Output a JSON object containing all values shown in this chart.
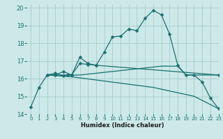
{
  "title": "",
  "xlabel": "Humidex (Indice chaleur)",
  "xlim": [
    -0.5,
    23
  ],
  "ylim": [
    14,
    20.2
  ],
  "yticks": [
    14,
    15,
    16,
    17,
    18,
    19,
    20
  ],
  "xticks": [
    0,
    1,
    2,
    3,
    4,
    5,
    6,
    7,
    8,
    9,
    10,
    11,
    12,
    13,
    14,
    15,
    16,
    17,
    18,
    19,
    20,
    21,
    22,
    23
  ],
  "background_color": "#cce8e8",
  "grid_color": "#aacccc",
  "line_color": "#1a7070",
  "series": [
    {
      "x": [
        0,
        1,
        2,
        3,
        4,
        5,
        6,
        7,
        8,
        9,
        10,
        11,
        12,
        13,
        14,
        15,
        16,
        17,
        18,
        19,
        20,
        21,
        22,
        23
      ],
      "y": [
        14.4,
        15.5,
        16.2,
        16.2,
        16.4,
        16.2,
        17.2,
        16.85,
        16.75,
        17.5,
        18.35,
        18.4,
        18.8,
        18.7,
        19.4,
        19.85,
        19.6,
        18.5,
        16.75,
        16.2,
        16.2,
        15.8,
        14.9,
        14.3
      ],
      "marker": "D",
      "markersize": 2.5,
      "linewidth": 0.9
    },
    {
      "x": [
        2,
        3,
        4,
        5,
        6,
        7,
        8,
        9,
        10,
        11,
        12,
        13,
        14,
        15,
        16,
        17,
        18,
        19,
        20,
        21,
        22,
        23
      ],
      "y": [
        16.2,
        16.2,
        16.2,
        16.2,
        16.2,
        16.25,
        16.3,
        16.35,
        16.4,
        16.45,
        16.5,
        16.55,
        16.6,
        16.65,
        16.7,
        16.7,
        16.7,
        16.2,
        16.2,
        16.2,
        16.2,
        16.2
      ],
      "marker": null,
      "markersize": 0,
      "linewidth": 0.9
    },
    {
      "x": [
        2,
        5,
        10,
        15,
        20,
        23
      ],
      "y": [
        16.2,
        16.1,
        15.8,
        15.5,
        15.0,
        14.3
      ],
      "marker": null,
      "markersize": 0,
      "linewidth": 0.9
    },
    {
      "x": [
        2,
        3,
        4,
        4.5,
        5,
        6,
        7,
        8,
        23
      ],
      "y": [
        16.2,
        16.3,
        16.15,
        16.2,
        16.2,
        16.85,
        16.8,
        16.75,
        16.2
      ],
      "marker": "D",
      "markersize": 2.5,
      "linewidth": 0.9
    }
  ]
}
